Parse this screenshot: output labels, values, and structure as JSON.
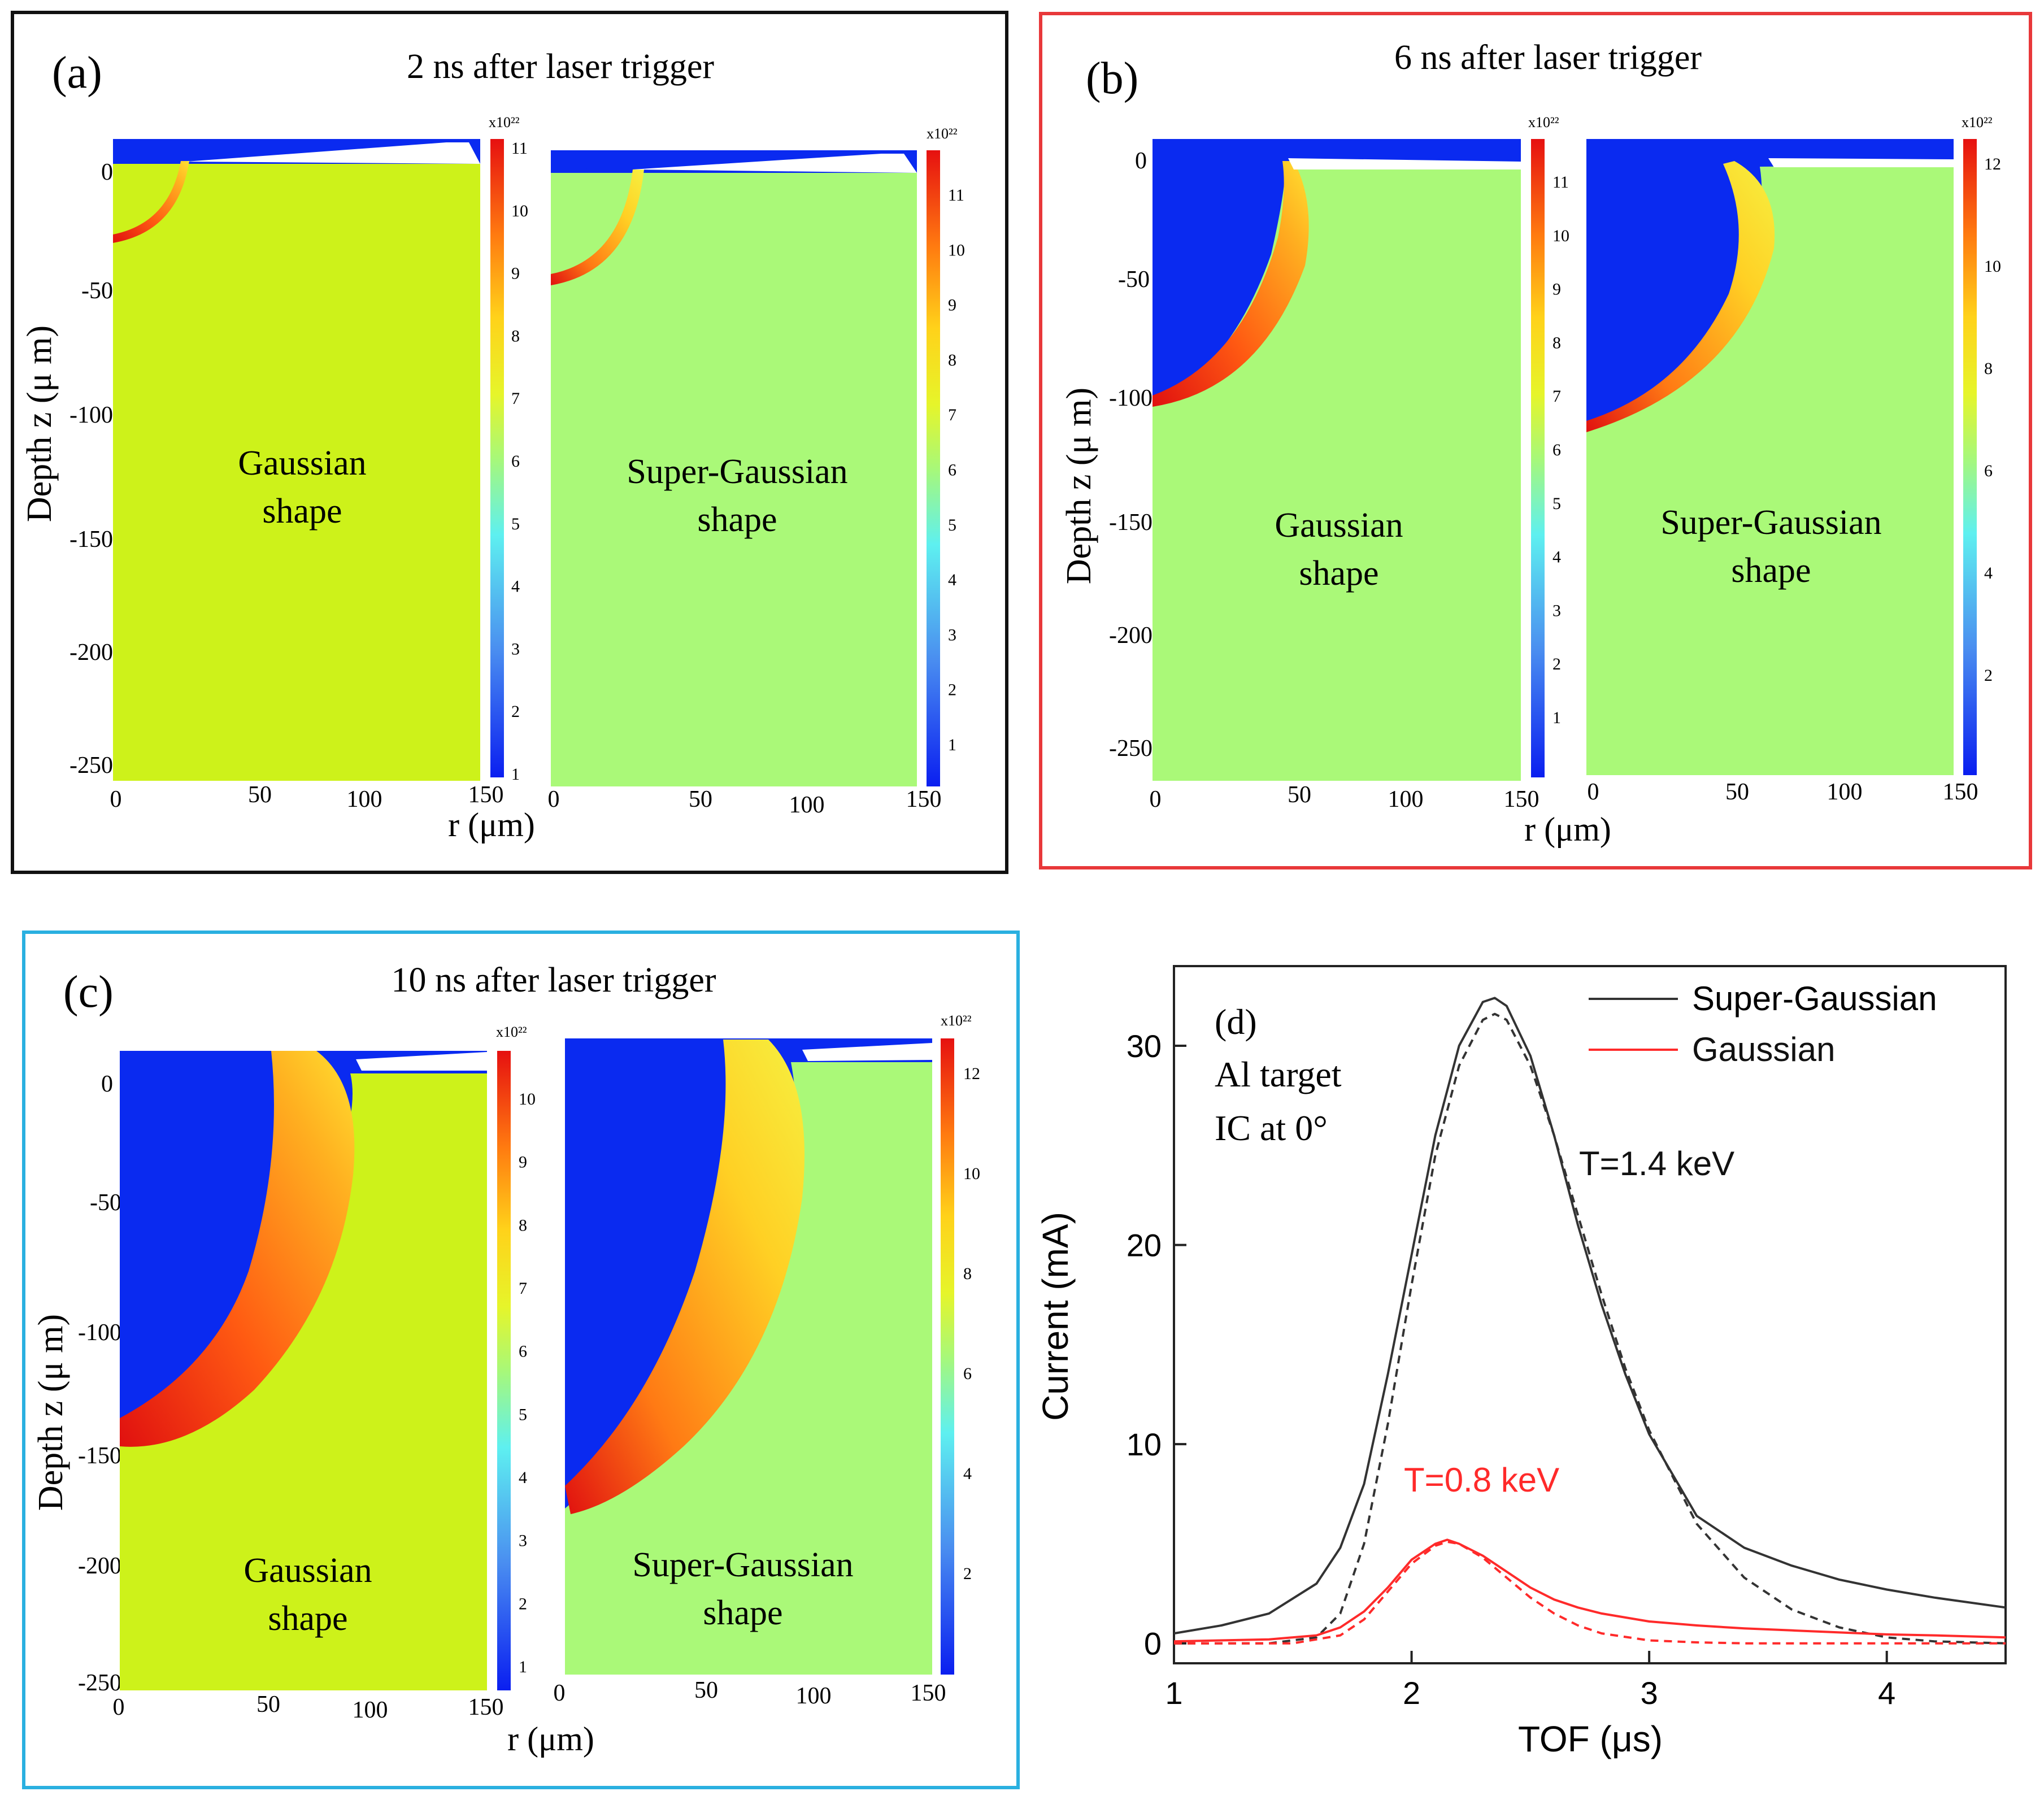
{
  "colors": {
    "panel_a_border": "#111111",
    "panel_b_border": "#e8383a",
    "panel_c_border": "#2ab0e0",
    "bg_blue": "#0a2af0",
    "gaussian_fill": "#cdf21a",
    "supergaussian_fill": "#aaf978",
    "super_gaussian_line": "#333333",
    "gaussian_line": "#ff2a2a"
  },
  "colorbar_exponent": "x10²²",
  "shape_labels": {
    "gaussian": [
      "Gaussian",
      "shape"
    ],
    "super_gaussian": [
      "Super-Gaussian",
      "shape"
    ]
  },
  "panels": [
    {
      "id": "a",
      "label": "(a)",
      "title": "2 ns after laser trigger",
      "ylabel": "Depth z (μ m)",
      "xlabel": "r (μm)",
      "yticks": [
        "0",
        "-50",
        "-100",
        "-150",
        "-200",
        "-250"
      ],
      "xticks": [
        "0",
        "50",
        "100",
        "150"
      ],
      "crater_depth_um": {
        "gaussian": 30,
        "super_gaussian": 42
      },
      "colorbar_ticks": {
        "gaussian": [
          "11",
          "10",
          "9",
          "8",
          "7",
          "6",
          "5",
          "4",
          "3",
          "2",
          "1"
        ],
        "super_gaussian": [
          "11",
          "10",
          "9",
          "8",
          "7",
          "6",
          "5",
          "4",
          "3",
          "2",
          "1"
        ]
      }
    },
    {
      "id": "b",
      "label": "(b)",
      "title": "6 ns after laser trigger",
      "ylabel": "Depth z (μ m)",
      "xlabel": "r (μm)",
      "yticks": [
        "0",
        "-50",
        "-100",
        "-150",
        "-200",
        "-250"
      ],
      "xticks": [
        "0",
        "50",
        "100",
        "150"
      ],
      "crater_depth_um": {
        "gaussian": 100,
        "super_gaussian": 110
      },
      "colorbar_ticks": {
        "gaussian": [
          "11",
          "10",
          "9",
          "8",
          "7",
          "6",
          "5",
          "4",
          "3",
          "2",
          "1"
        ],
        "super_gaussian": [
          "12",
          "10",
          "8",
          "6",
          "4",
          "2"
        ]
      }
    },
    {
      "id": "c",
      "label": "(c)",
      "title": "10 ns after laser trigger",
      "ylabel": "Depth z (μ m)",
      "xlabel": "r (μm)",
      "yticks": [
        "0",
        "-50",
        "-100",
        "-150",
        "-200",
        "-250"
      ],
      "xticks": [
        "0",
        "50",
        "100",
        "150"
      ],
      "crater_depth_um": {
        "gaussian": 140,
        "super_gaussian": 165
      },
      "colorbar_ticks": {
        "gaussian": [
          "10",
          "9",
          "8",
          "7",
          "6",
          "5",
          "4",
          "3",
          "2",
          "1"
        ],
        "super_gaussian": [
          "12",
          "10",
          "8",
          "6",
          "4",
          "2"
        ]
      }
    }
  ],
  "chart_data": {
    "type": "line",
    "panel_label": "(d)",
    "annotations": [
      "Al target",
      "IC at 0°"
    ],
    "xlabel": "TOF (μs)",
    "ylabel": "Current (mA)",
    "xlim": [
      1,
      4.5
    ],
    "ylim": [
      -1,
      34
    ],
    "xticks": [
      1,
      2,
      3,
      4
    ],
    "yticks": [
      0,
      10,
      20,
      30
    ],
    "legend": [
      "Super-Gaussian",
      "Gaussian"
    ],
    "legend_position": "top-right",
    "temperature_labels": {
      "super_gaussian": "T=1.4 keV",
      "gaussian": "T=0.8 keV"
    },
    "series": [
      {
        "name": "Super-Gaussian",
        "style": "solid",
        "x": [
          1.0,
          1.2,
          1.4,
          1.6,
          1.7,
          1.8,
          1.9,
          2.0,
          2.1,
          2.2,
          2.3,
          2.35,
          2.4,
          2.5,
          2.6,
          2.7,
          2.8,
          2.9,
          3.0,
          3.2,
          3.4,
          3.6,
          3.8,
          4.0,
          4.2,
          4.5
        ],
        "y": [
          0.5,
          0.9,
          1.5,
          3.0,
          4.8,
          8.0,
          13.5,
          19.5,
          25.5,
          30.0,
          32.2,
          32.4,
          32.0,
          29.5,
          25.5,
          21.0,
          17.0,
          13.5,
          10.5,
          6.4,
          4.8,
          3.9,
          3.2,
          2.7,
          2.3,
          1.8
        ]
      },
      {
        "name": "Super-Gaussian fit",
        "style": "dashed",
        "x": [
          1.0,
          1.4,
          1.6,
          1.7,
          1.8,
          1.9,
          2.0,
          2.1,
          2.2,
          2.3,
          2.35,
          2.4,
          2.5,
          2.6,
          2.7,
          2.8,
          2.9,
          3.0,
          3.2,
          3.4,
          3.6,
          3.8,
          4.0,
          4.2,
          4.5
        ],
        "y": [
          0.0,
          0.0,
          0.3,
          1.5,
          5.0,
          11.0,
          18.0,
          24.5,
          29.0,
          31.3,
          31.6,
          31.3,
          29.0,
          25.5,
          21.5,
          17.5,
          13.8,
          10.7,
          6.0,
          3.3,
          1.7,
          0.8,
          0.3,
          0.1,
          0.0
        ]
      },
      {
        "name": "Gaussian",
        "style": "solid",
        "x": [
          1.0,
          1.4,
          1.6,
          1.7,
          1.8,
          1.9,
          2.0,
          2.1,
          2.15,
          2.2,
          2.3,
          2.4,
          2.5,
          2.6,
          2.7,
          2.8,
          3.0,
          3.2,
          3.4,
          3.6,
          3.8,
          4.0,
          4.2,
          4.5
        ],
        "y": [
          0.1,
          0.2,
          0.4,
          0.8,
          1.6,
          2.8,
          4.2,
          5.0,
          5.2,
          5.0,
          4.4,
          3.6,
          2.8,
          2.2,
          1.8,
          1.5,
          1.1,
          0.9,
          0.75,
          0.65,
          0.55,
          0.45,
          0.4,
          0.3
        ]
      },
      {
        "name": "Gaussian fit",
        "style": "dashed",
        "x": [
          1.0,
          1.5,
          1.7,
          1.8,
          1.9,
          2.0,
          2.1,
          2.15,
          2.2,
          2.3,
          2.4,
          2.5,
          2.6,
          2.7,
          2.8,
          3.0,
          3.2,
          3.4,
          4.5
        ],
        "y": [
          0.0,
          0.0,
          0.4,
          1.2,
          2.6,
          4.0,
          4.9,
          5.1,
          5.0,
          4.3,
          3.3,
          2.3,
          1.5,
          0.9,
          0.5,
          0.15,
          0.05,
          0.0,
          0.0
        ]
      }
    ]
  }
}
